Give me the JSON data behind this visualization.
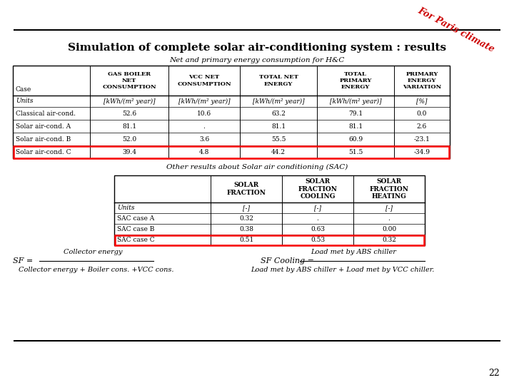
{
  "title": "Simulation of complete solar air-conditioning system : results",
  "subtitle1": "Net and primary energy consumption for H&C",
  "subtitle2": "Other results about Solar air conditioning (SAC)",
  "corner_text": "For Paris climate",
  "table1_col_headers": [
    "GAS BOILER\nNET\nCONSUMPTION",
    "VCC NET\nCONSUMPTION",
    "TOTAL NET\nENERGY",
    "TOTAL\nPRIMARY\nENERGY",
    "PRIMARY\nENERGY\nVARIATION"
  ],
  "table1_row_label": "Case",
  "table1_rows": [
    [
      "Units",
      "[kWh/(m² year)]",
      "[kWh/(m² year)]",
      "[kWh/(m² year)]",
      "[kWh/(m² year)]",
      "[%]"
    ],
    [
      "Classical air-cond.",
      "52.6",
      "10.6",
      "63.2",
      "79.1",
      "0.0"
    ],
    [
      "Solar air-cond. A",
      "81.1",
      ".",
      "81.1",
      "81.1",
      "2.6"
    ],
    [
      "Solar air-cond. B",
      "52.0",
      "3.6",
      "55.5",
      "60.9",
      "-23.1"
    ],
    [
      "Solar air-cond. C",
      "39.4",
      "4.8",
      "44.2",
      "51.5",
      "-34.9"
    ]
  ],
  "table1_highlight_row": 5,
  "table2_col_headers": [
    "SOLAR\nFRACTION",
    "SOLAR\nFRACTION\nCOOLING",
    "SOLAR\nFRACTION\nHEATING"
  ],
  "table2_rows": [
    [
      "Units",
      "[-]",
      "[-]",
      "[-]"
    ],
    [
      "SAC case A",
      "0.32",
      ".",
      "."
    ],
    [
      "SAC case B",
      "0.38",
      "0.63",
      "0.00"
    ],
    [
      "SAC case C",
      "0.51",
      "0.53",
      "0.32"
    ]
  ],
  "table2_highlight_row": 4,
  "formula_left_prefix": "SF =",
  "formula_left_num": "Collector energy",
  "formula_left_den": "Collector energy + Boiler cons. +VCC cons.",
  "formula_right_prefix": "SF Cooling =",
  "formula_right_num": "Load met by ABS chiller",
  "formula_right_den": "Load met by ABS chiller + Load met by VCC chiller.",
  "page_number": "22",
  "bg_color": "#ffffff",
  "red_color": "#cc0000",
  "black": "#000000"
}
